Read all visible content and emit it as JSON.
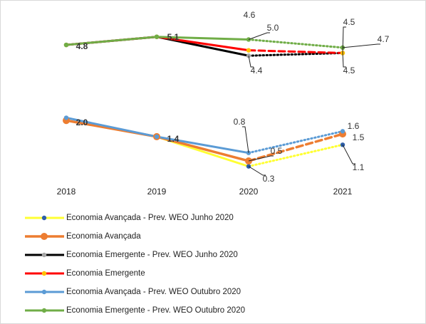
{
  "chart_data": {
    "type": "line",
    "categories": [
      "2018",
      "2019",
      "2020",
      "2021"
    ],
    "ylim": [
      0,
      6.2
    ],
    "series": [
      {
        "name": "Economia Avançada - Prev. WEO Junho 2020",
        "color": "#ffff33",
        "marker_color": "#2e5fa8",
        "style": "dotted",
        "values": [
          2.0,
          1.4,
          0.3,
          1.1
        ],
        "value_labels": [
          "2.0",
          "1.4",
          "0.3",
          "1.1"
        ]
      },
      {
        "name": "Economia Avançada",
        "color": "#ed7d31",
        "marker_color": "#ed7d31",
        "style": "dashed",
        "values": [
          2.0,
          1.4,
          0.5,
          1.5
        ],
        "value_labels": [
          null,
          null,
          "0.5",
          "1.5"
        ]
      },
      {
        "name": "Economia Emergente - Prev. WEO Junho 2020",
        "color": "#000000",
        "marker_color": "#a5a5a5",
        "style": "dotted",
        "values": [
          4.8,
          5.1,
          4.4,
          4.5
        ],
        "value_labels": [
          "4.8",
          "5.1",
          "4.4",
          "4.5"
        ]
      },
      {
        "name": "Economia Emergente",
        "color": "#ff0000",
        "marker_color": "#ffc000",
        "style": "dashed",
        "values": [
          4.8,
          5.1,
          4.6,
          4.5
        ],
        "value_labels": [
          null,
          null,
          "4.6",
          "4.5"
        ]
      },
      {
        "name": "Economia Avançada - Prev. WEO Outubro 2020",
        "color": "#5b9bd5",
        "marker_color": "#5b9bd5",
        "style": "dotted",
        "values": [
          2.1,
          1.4,
          0.8,
          1.6
        ],
        "value_labels": [
          null,
          null,
          "0.8",
          "1.6"
        ]
      },
      {
        "name": "Economia Emergente - Prev. WEO Outubro 2020",
        "color": "#70ad47",
        "marker_color": "#70ad47",
        "style": "dotted",
        "values": [
          4.8,
          5.1,
          5.0,
          4.7
        ],
        "value_labels": [
          null,
          null,
          "5.0",
          "4.7"
        ]
      }
    ]
  }
}
